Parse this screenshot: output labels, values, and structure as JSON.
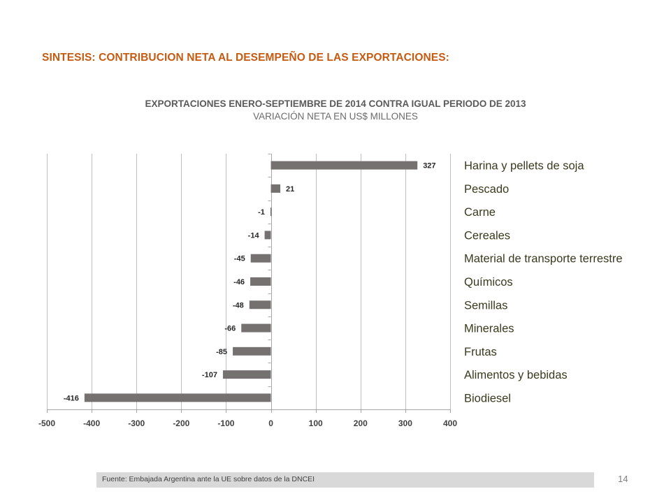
{
  "slide": {
    "title": "SINTESIS: CONTRIBUCION NETA AL DESEMPEÑO DE LAS EXPORTACIONES:",
    "footer": "Fuente: Embajada  Argentina ante la UE sobre datos de la DNCEI",
    "page_number": "14"
  },
  "chart_data": {
    "type": "bar",
    "orientation": "horizontal",
    "title": "EXPORTACIONES ENERO-SEPTIEMBRE DE 2014 CONTRA IGUAL PERIODO DE 2013",
    "subtitle": "VARIACIÓN NETA EN US$ MILLONES",
    "categories": [
      "Harina y pellets de soja",
      "Pescado",
      "Carne",
      "Cereales",
      "Material de transporte terrestre",
      "Químicos",
      "Semillas",
      "Minerales",
      "Frutas",
      "Alimentos y bebidas",
      "Biodiesel"
    ],
    "values": [
      327,
      21,
      -1,
      -14,
      -45,
      -46,
      -48,
      -66,
      -85,
      -107,
      -416
    ],
    "data_labels": [
      "327",
      "21",
      "-1",
      "-14",
      "-45",
      "-46",
      "-48",
      "-66",
      "-85",
      "-107",
      "-416"
    ],
    "xlim": [
      -500,
      400
    ],
    "xticks": [
      -500,
      -400,
      -300,
      -200,
      -100,
      0,
      100,
      200,
      300,
      400
    ],
    "xtick_labels": [
      "-500",
      "-400",
      "-300",
      "-200",
      "-100",
      "0",
      "100",
      "200",
      "300",
      "400"
    ],
    "grid": "vertical",
    "bar_color": "#767171",
    "category_label_color": "#3a3a1e",
    "legend": "none"
  }
}
